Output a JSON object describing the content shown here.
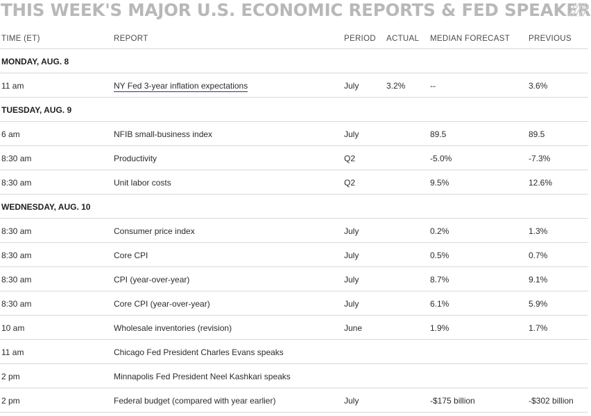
{
  "title": "THIS WEEK'S MAJOR U.S. ECONOMIC REPORTS & FED SPEAKERS",
  "columns": {
    "time": "TIME (ET)",
    "report": "REPORT",
    "period": "PERIOD",
    "actual": "ACTUAL",
    "median": "MEDIAN FORECAST",
    "previous": "PREVIOUS"
  },
  "rows": [
    {
      "kind": "day",
      "label": "MONDAY, AUG. 8"
    },
    {
      "kind": "data",
      "time": "11 am",
      "report": "NY Fed 3-year inflation expectations",
      "link": true,
      "period": "July",
      "actual": "3.2%",
      "median": "--",
      "previous": "3.6%"
    },
    {
      "kind": "day",
      "label": "TUESDAY, AUG. 9"
    },
    {
      "kind": "data",
      "time": "6 am",
      "report": "NFIB small-business index",
      "period": "July",
      "actual": "",
      "median": "89.5",
      "previous": "89.5"
    },
    {
      "kind": "data",
      "time": "8:30 am",
      "report": "Productivity",
      "period": "Q2",
      "actual": "",
      "median": "-5.0%",
      "previous": "-7.3%"
    },
    {
      "kind": "data",
      "time": "8:30 am",
      "report": "Unit labor costs",
      "period": "Q2",
      "actual": "",
      "median": "9.5%",
      "previous": "12.6%"
    },
    {
      "kind": "day",
      "label": "WEDNESDAY, AUG. 10"
    },
    {
      "kind": "data",
      "time": "8:30 am",
      "report": "Consumer price index",
      "period": "July",
      "actual": "",
      "median": "0.2%",
      "previous": "1.3%"
    },
    {
      "kind": "data",
      "time": "8:30 am",
      "report": "Core CPI",
      "period": "July",
      "actual": "",
      "median": "0.5%",
      "previous": "0.7%"
    },
    {
      "kind": "data",
      "time": "8:30 am",
      "report": "CPI (year-over-year)",
      "period": "July",
      "actual": "",
      "median": "8.7%",
      "previous": "9.1%"
    },
    {
      "kind": "data",
      "time": "8:30 am",
      "report": "Core CPI (year-over-year)",
      "period": "July",
      "actual": "",
      "median": "6.1%",
      "previous": "5.9%"
    },
    {
      "kind": "data",
      "time": "10 am",
      "report": "Wholesale inventories (revision)",
      "period": "June",
      "actual": "",
      "median": "1.9%",
      "previous": "1.7%"
    },
    {
      "kind": "data",
      "time": "11 am",
      "report": "Chicago Fed President Charles Evans speaks",
      "period": "",
      "actual": "",
      "median": "",
      "previous": ""
    },
    {
      "kind": "data",
      "time": "2 pm",
      "report": "Minnapolis Fed President Neel Kashkari speaks",
      "period": "",
      "actual": "",
      "median": "",
      "previous": ""
    },
    {
      "kind": "data",
      "time": "2 pm",
      "report": "Federal budget (compared with year earlier)",
      "period": "July",
      "actual": "",
      "median": "-$175 billion",
      "previous": "-$302 billion"
    }
  ]
}
